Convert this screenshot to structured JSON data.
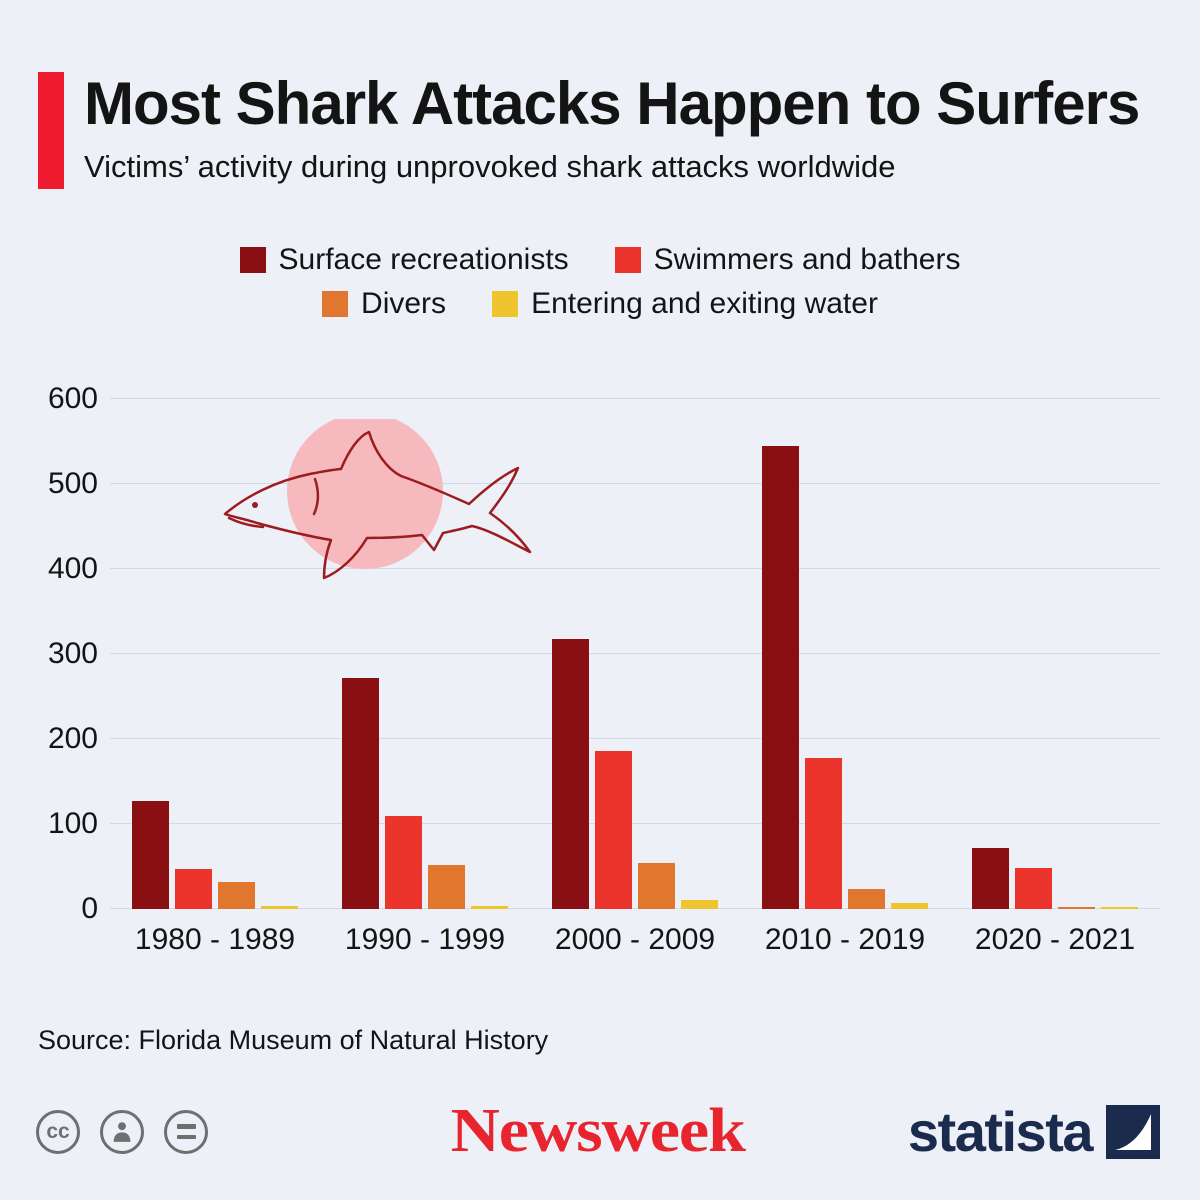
{
  "header": {
    "title": "Most Shark Attacks Happen to Surfers",
    "subtitle": "Victims’ activity during unprovoked shark attacks worldwide"
  },
  "chart_data": {
    "type": "bar",
    "title": "Most Shark Attacks Happen to Surfers",
    "subtitle": "Victims’ activity during unprovoked shark attacks worldwide",
    "categories": [
      "1980 - 1989",
      "1990 - 1999",
      "2000 - 2009",
      "2010 - 2019",
      "2020 - 2021"
    ],
    "series": [
      {
        "name": "Surface recreationists",
        "color": "#8a0f12",
        "values": [
          127,
          272,
          318,
          545,
          72
        ]
      },
      {
        "name": "Swimmers and bathers",
        "color": "#ea342c",
        "values": [
          47,
          110,
          186,
          178,
          48
        ]
      },
      {
        "name": "Divers",
        "color": "#e1762f",
        "values": [
          32,
          52,
          54,
          24,
          2
        ]
      },
      {
        "name": "Entering and exiting water",
        "color": "#eec52f",
        "values": [
          3,
          3,
          11,
          7,
          1
        ]
      }
    ],
    "xlabel": "",
    "ylabel": "",
    "ylim": [
      0,
      600
    ],
    "yticks": [
      0,
      100,
      200,
      300,
      400,
      500,
      600
    ],
    "grid": true,
    "legend_position": "top"
  },
  "source": {
    "text": "Source: Florida Museum of Natural History"
  },
  "footer": {
    "cc_text": "cc",
    "newsweek": "Newsweek",
    "statista": "statista"
  },
  "colors": {
    "background": "#edf1f7",
    "accent_bar": "#ee1c2e",
    "gridline": "#d3d9e1",
    "newsweek_red": "#e8242e",
    "statista_navy": "#1b2b4d",
    "shark_outline": "#9d1c20",
    "shark_circle": "#f5b9be",
    "cc_gray": "#6f6f6f"
  }
}
